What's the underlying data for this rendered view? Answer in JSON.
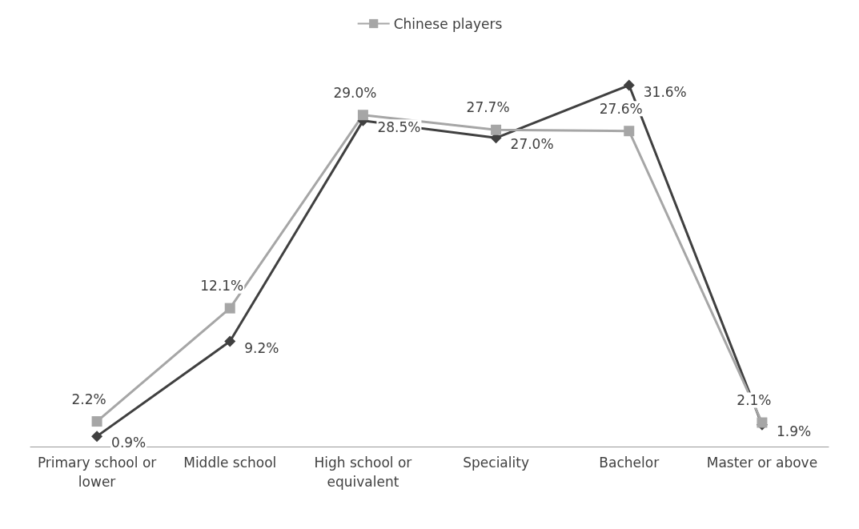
{
  "chart_data": {
    "type": "line",
    "categories": [
      "Primary school or\nlower",
      "Middle school",
      "High school or\nequivalent",
      "Speciality",
      "Bachelor",
      "Master or above"
    ],
    "series": [
      {
        "color": "#404040",
        "marker": "diamond",
        "values": [
          0.9,
          9.2,
          28.5,
          27.0,
          31.6,
          1.9
        ],
        "value_labels": [
          "0.9%",
          "9.2%",
          "28.5%",
          "27.0%",
          "31.6%",
          "1.9%"
        ]
      },
      {
        "name": "Chinese players",
        "color": "#a6a6a6",
        "marker": "square",
        "values": [
          2.2,
          12.1,
          29.0,
          27.7,
          27.6,
          2.1
        ],
        "value_labels": [
          "2.2%",
          "12.1%",
          "29.0%",
          "27.7%",
          "27.6%",
          "2.1%"
        ]
      }
    ],
    "tick_labels": "x",
    "legend": "top",
    "grid": false
  }
}
